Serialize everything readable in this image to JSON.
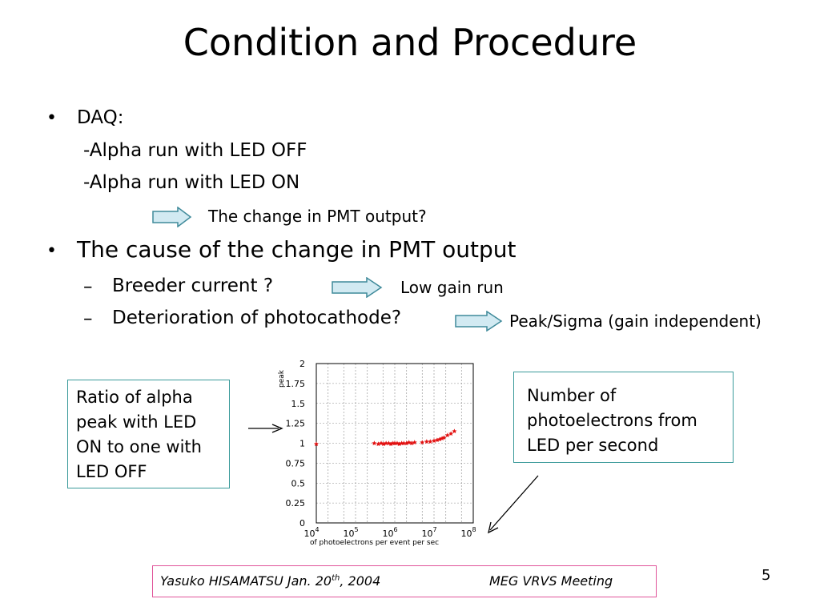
{
  "title": "Condition and Procedure",
  "daq": {
    "bullet": "•",
    "label": "DAQ:",
    "items": [
      "-Alpha run with LED OFF",
      "-Alpha run with LED ON"
    ],
    "result": "The change in PMT output?"
  },
  "cause": {
    "bullet": "•",
    "label": "The cause of the change in PMT output",
    "items": [
      {
        "dash": "–",
        "text": "Breeder current ?",
        "result": "Low gain run"
      },
      {
        "dash": "–",
        "text": "Deterioration of photocathode?",
        "result": "Peak/Sigma (gain independent)"
      }
    ]
  },
  "left_box": "Ratio of alpha peak with LED ON to one with LED OFF",
  "right_box": "Number of photoelectrons from LED per second",
  "footer": {
    "author": "Yasuko HISAMATSU Jan. 20",
    "sup": "th",
    "year": ", 2004",
    "meeting": "MEG VRVS Meeting"
  },
  "page_number": "5",
  "colors": {
    "box_border": "#3a9a9a",
    "footer_border": "#e0559a",
    "arrow_fill": "#d2eaf2",
    "arrow_stroke": "#3f8a9a",
    "marker": "#e21010"
  },
  "chart_data": {
    "type": "scatter",
    "ylabel": "peak",
    "xlabel": "of photoelectrons per event per sec",
    "x_scale": "log",
    "xlim": [
      10000,
      100000000
    ],
    "ylim": [
      0,
      2
    ],
    "y_ticks": [
      "0",
      "0.25",
      "0.5",
      "0.75",
      "1",
      "1.25",
      "1.5",
      "1.75",
      "2"
    ],
    "x_ticks": [
      {
        "base": "10",
        "exp": "4"
      },
      {
        "base": "10",
        "exp": "5"
      },
      {
        "base": "10",
        "exp": "6"
      },
      {
        "base": "10",
        "exp": "7"
      },
      {
        "base": "10",
        "exp": "8"
      }
    ],
    "grid": true,
    "series": [
      {
        "marker": "star",
        "points": [
          [
            10000,
            0.99
          ],
          [
            300000,
            1.0
          ],
          [
            380000,
            0.99
          ],
          [
            450000,
            1.0
          ],
          [
            520000,
            0.99
          ],
          [
            600000,
            1.0
          ],
          [
            700000,
            1.0
          ],
          [
            800000,
            0.99
          ],
          [
            900000,
            1.0
          ],
          [
            1000000,
            1.0
          ],
          [
            1150000,
            1.0
          ],
          [
            1300000,
            0.99
          ],
          [
            1500000,
            1.0
          ],
          [
            1700000,
            1.0
          ],
          [
            2000000,
            1.0
          ],
          [
            2300000,
            1.01
          ],
          [
            2700000,
            1.0
          ],
          [
            3200000,
            1.01
          ],
          [
            5000000,
            1.01
          ],
          [
            6500000,
            1.02
          ],
          [
            8000000,
            1.02
          ],
          [
            10000000,
            1.03
          ],
          [
            12000000,
            1.04
          ],
          [
            14000000,
            1.05
          ],
          [
            16000000,
            1.06
          ],
          [
            18000000,
            1.07
          ],
          [
            22000000,
            1.1
          ],
          [
            27000000,
            1.12
          ],
          [
            33000000,
            1.15
          ]
        ]
      }
    ]
  }
}
